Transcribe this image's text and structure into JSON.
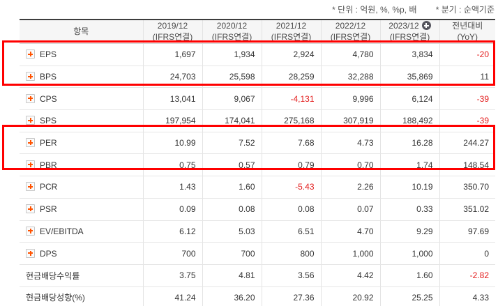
{
  "notes": {
    "unit": "* 단위 : 억원, %, %p, 배",
    "basis": "* 분기 : 순액기준"
  },
  "table": {
    "item_header": "항목",
    "columns": [
      {
        "line1": "2019/12",
        "line2": "(IFRS연결)",
        "add_icon": false
      },
      {
        "line1": "2020/12",
        "line2": "(IFRS연결)",
        "add_icon": false
      },
      {
        "line1": "2021/12",
        "line2": "(IFRS연결)",
        "add_icon": false
      },
      {
        "line1": "2022/12",
        "line2": "(IFRS연결)",
        "add_icon": false
      },
      {
        "line1": "2023/12",
        "line2": "(IFRS연결)",
        "add_icon": true
      },
      {
        "line1": "전년대비",
        "line2": "(YoY)",
        "add_icon": false
      }
    ],
    "rows": [
      {
        "label": "EPS",
        "expand_icon": true,
        "values": [
          "1,697",
          "1,934",
          "2,924",
          "4,780",
          "3,834",
          "-20"
        ]
      },
      {
        "label": "BPS",
        "expand_icon": true,
        "values": [
          "24,703",
          "25,598",
          "28,259",
          "32,288",
          "35,869",
          "11"
        ]
      },
      {
        "label": "CPS",
        "expand_icon": true,
        "values": [
          "13,041",
          "9,067",
          "-4,131",
          "9,996",
          "6,124",
          "-39"
        ]
      },
      {
        "label": "SPS",
        "expand_icon": true,
        "values": [
          "197,954",
          "174,041",
          "275,168",
          "307,919",
          "188,492",
          "-39"
        ]
      },
      {
        "label": "PER",
        "expand_icon": true,
        "values": [
          "10.99",
          "7.52",
          "7.68",
          "4.73",
          "16.28",
          "244.27"
        ]
      },
      {
        "label": "PBR",
        "expand_icon": true,
        "values": [
          "0.75",
          "0.57",
          "0.79",
          "0.70",
          "1.74",
          "148.54"
        ]
      },
      {
        "label": "PCR",
        "expand_icon": true,
        "values": [
          "1.43",
          "1.60",
          "-5.43",
          "2.26",
          "10.19",
          "350.70"
        ]
      },
      {
        "label": "PSR",
        "expand_icon": true,
        "values": [
          "0.09",
          "0.08",
          "0.08",
          "0.07",
          "0.33",
          "351.02"
        ]
      },
      {
        "label": "EV/EBITDA",
        "expand_icon": true,
        "values": [
          "6.12",
          "5.03",
          "6.51",
          "4.70",
          "9.29",
          "97.69"
        ]
      },
      {
        "label": "DPS",
        "expand_icon": true,
        "values": [
          "700",
          "700",
          "800",
          "1,000",
          "1,000",
          "0"
        ]
      },
      {
        "label": "현금배당수익률",
        "expand_icon": false,
        "values": [
          "3.75",
          "4.81",
          "3.56",
          "4.42",
          "1.60",
          "-2.82"
        ]
      },
      {
        "label": "현금배당성향(%)",
        "expand_icon": false,
        "values": [
          "41.24",
          "36.20",
          "27.36",
          "20.92",
          "25.25",
          "4.33"
        ]
      }
    ],
    "highlights": [
      {
        "name": "eps-bps",
        "rows": [
          "EPS",
          "BPS"
        ]
      },
      {
        "name": "per-pbr",
        "rows": [
          "PER",
          "PBR"
        ]
      }
    ]
  },
  "colors": {
    "negative_value": "#e31b1b",
    "highlight_border": "#ff0000",
    "expand_plus": "#ff5200",
    "add_circle_bg": "#55555e",
    "header_bg": "#f6f6f6",
    "table_top_border": "#3d3d3d"
  }
}
